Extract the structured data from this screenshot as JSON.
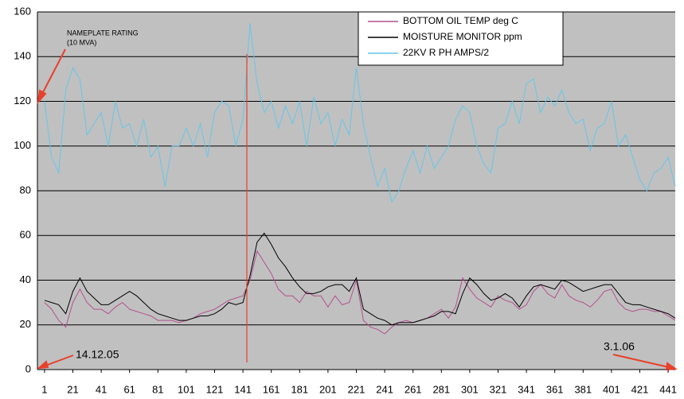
{
  "chart_data": {
    "type": "line",
    "x": [
      1,
      6,
      11,
      16,
      21,
      26,
      31,
      36,
      41,
      46,
      51,
      56,
      61,
      66,
      71,
      76,
      81,
      86,
      91,
      96,
      101,
      106,
      111,
      116,
      121,
      126,
      131,
      136,
      141,
      146,
      151,
      156,
      161,
      166,
      171,
      176,
      181,
      186,
      191,
      196,
      201,
      206,
      211,
      216,
      221,
      226,
      231,
      236,
      241,
      246,
      251,
      256,
      261,
      266,
      271,
      276,
      281,
      286,
      291,
      296,
      301,
      306,
      311,
      316,
      321,
      326,
      331,
      336,
      341,
      346,
      351,
      356,
      361,
      366,
      371,
      376,
      381,
      386,
      391,
      396,
      401,
      406,
      411,
      416,
      421,
      426,
      431,
      436,
      441,
      446
    ],
    "series": [
      {
        "name": "BOTTOM OIL TEMP deg C",
        "color": "#b3508f",
        "values": [
          30,
          27,
          22,
          19,
          30,
          36,
          30,
          27,
          27,
          25,
          28,
          30,
          27,
          26,
          25,
          24,
          22,
          22,
          22,
          21,
          22,
          23,
          25,
          26,
          27,
          29,
          31,
          32,
          33,
          40,
          53,
          48,
          43,
          36,
          33,
          33,
          30,
          35,
          33,
          33,
          28,
          33,
          29,
          30,
          40,
          22,
          19,
          18,
          16,
          19,
          21,
          22,
          21,
          22,
          23,
          25,
          27,
          23,
          28,
          41,
          36,
          32,
          30,
          28,
          33,
          31,
          30,
          27,
          29,
          35,
          38,
          34,
          32,
          38,
          33,
          31,
          30,
          28,
          31,
          35,
          36,
          30,
          27,
          26,
          27,
          27,
          26,
          26,
          24,
          22
        ]
      },
      {
        "name": "MOISTURE MONITOR ppm",
        "color": "#000000",
        "values": [
          31,
          30,
          29,
          25,
          35,
          41,
          35,
          32,
          29,
          29,
          31,
          33,
          35,
          33,
          30,
          27,
          25,
          24,
          23,
          22,
          22,
          23,
          24,
          24,
          25,
          27,
          30,
          29,
          30,
          42,
          57,
          61,
          56,
          50,
          46,
          41,
          37,
          34,
          34,
          35,
          37,
          38,
          38,
          35,
          41,
          27,
          25,
          23,
          22,
          20,
          21,
          21,
          21,
          22,
          23,
          24,
          26,
          26,
          25,
          34,
          41,
          38,
          34,
          31,
          32,
          34,
          32,
          28,
          33,
          37,
          38,
          37,
          36,
          40,
          39,
          37,
          35,
          36,
          37,
          38,
          38,
          34,
          30,
          29,
          29,
          28,
          27,
          26,
          25,
          23
        ]
      },
      {
        "name": "22KV R PH AMPS/2",
        "color": "#66c6e8",
        "values": [
          120,
          95,
          88,
          125,
          135,
          130,
          105,
          110,
          115,
          100,
          120,
          108,
          110,
          100,
          112,
          95,
          100,
          82,
          100,
          100,
          108,
          100,
          110,
          95,
          115,
          120,
          118,
          100,
          112,
          155,
          128,
          115,
          120,
          108,
          118,
          110,
          120,
          100,
          122,
          110,
          115,
          100,
          112,
          105,
          135,
          110,
          95,
          82,
          90,
          75,
          80,
          90,
          98,
          88,
          100,
          90,
          95,
          100,
          112,
          118,
          115,
          100,
          92,
          88,
          108,
          110,
          120,
          110,
          128,
          130,
          115,
          122,
          118,
          125,
          115,
          110,
          112,
          98,
          108,
          110,
          120,
          100,
          105,
          95,
          85,
          80,
          88,
          90,
          95,
          82
        ]
      }
    ],
    "xlim": [
      -4,
      446
    ],
    "xticks": [
      1,
      21,
      41,
      61,
      81,
      101,
      121,
      141,
      161,
      181,
      201,
      221,
      241,
      261,
      281,
      301,
      321,
      341,
      361,
      381,
      401,
      421,
      441
    ],
    "ylim": [
      0,
      160
    ],
    "yticks": [
      0,
      20,
      40,
      60,
      80,
      100,
      120,
      140,
      160
    ],
    "grid": true,
    "annotations": [
      "NAMEPLATE RATING",
      "(10 MVA)",
      "14.12.05",
      "3.1.06"
    ]
  }
}
